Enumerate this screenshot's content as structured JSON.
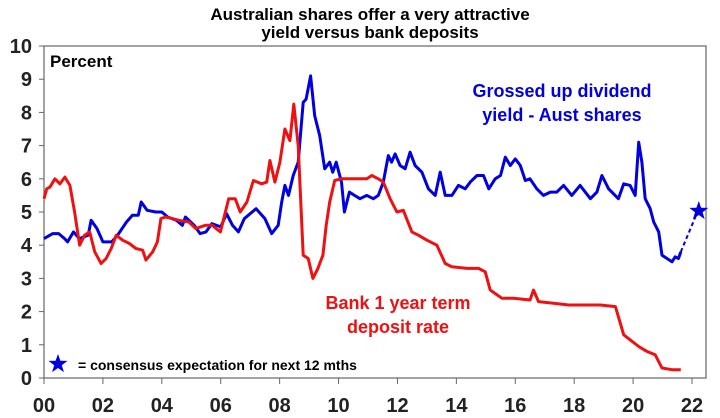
{
  "chart_data": {
    "type": "line",
    "title": "Australian shares offer a very attractive yield versus bank deposits",
    "title_lines": [
      "Australian shares offer a very attractive",
      "yield versus bank deposits"
    ],
    "ylabel": "Percent",
    "ylim": [
      0,
      10
    ],
    "xlim": [
      2000,
      2022.5
    ],
    "y_ticks": [
      "0",
      "1",
      "2",
      "3",
      "4",
      "5",
      "6",
      "7",
      "8",
      "9",
      "10"
    ],
    "x_ticks": [
      {
        "label": "00",
        "value": 2000
      },
      {
        "label": "02",
        "value": 2002
      },
      {
        "label": "04",
        "value": 2004
      },
      {
        "label": "06",
        "value": 2006
      },
      {
        "label": "08",
        "value": 2008
      },
      {
        "label": "10",
        "value": 2010
      },
      {
        "label": "12",
        "value": 2012
      },
      {
        "label": "14",
        "value": 2014
      },
      {
        "label": "16",
        "value": 2016
      },
      {
        "label": "18",
        "value": 2018
      },
      {
        "label": "20",
        "value": 2020
      },
      {
        "label": "22",
        "value": 2022
      }
    ],
    "grid": false,
    "series": [
      {
        "name": "Grossed up dividend yield - Aust shares",
        "label_lines": [
          "Grossed up dividend",
          "yield - Aust shares"
        ],
        "color": "#0000e0",
        "points": [
          [
            2000,
            4.2
          ],
          [
            2000.3,
            4.35
          ],
          [
            2000.5,
            4.35
          ],
          [
            2000.7,
            4.2
          ],
          [
            2000.8,
            4.1
          ],
          [
            2001,
            4.4
          ],
          [
            2001.2,
            4.2
          ],
          [
            2001.5,
            4.3
          ],
          [
            2001.6,
            4.75
          ],
          [
            2001.8,
            4.5
          ],
          [
            2002,
            4.1
          ],
          [
            2002.3,
            4.1
          ],
          [
            2002.5,
            4.3
          ],
          [
            2002.8,
            4.7
          ],
          [
            2003,
            4.9
          ],
          [
            2003.2,
            4.9
          ],
          [
            2003.3,
            5.3
          ],
          [
            2003.5,
            5.05
          ],
          [
            2003.8,
            5.0
          ],
          [
            2004,
            5.0
          ],
          [
            2004.2,
            4.85
          ],
          [
            2004.5,
            4.75
          ],
          [
            2004.7,
            4.6
          ],
          [
            2004.8,
            4.85
          ],
          [
            2005.1,
            4.6
          ],
          [
            2005.3,
            4.35
          ],
          [
            2005.5,
            4.4
          ],
          [
            2005.7,
            4.65
          ],
          [
            2006,
            4.55
          ],
          [
            2006.2,
            4.95
          ],
          [
            2006.4,
            4.6
          ],
          [
            2006.6,
            4.4
          ],
          [
            2006.8,
            4.8
          ],
          [
            2007.2,
            5.1
          ],
          [
            2007.5,
            4.8
          ],
          [
            2007.73,
            4.35
          ],
          [
            2007.95,
            4.6
          ],
          [
            2008.07,
            5.3
          ],
          [
            2008.18,
            5.8
          ],
          [
            2008.3,
            5.5
          ],
          [
            2008.46,
            6.1
          ],
          [
            2008.63,
            6.5
          ],
          [
            2008.8,
            8.3
          ],
          [
            2008.9,
            8.4
          ],
          [
            2009.05,
            9.1
          ],
          [
            2009.19,
            7.9
          ],
          [
            2009.36,
            7.3
          ],
          [
            2009.53,
            6.3
          ],
          [
            2009.7,
            6.5
          ],
          [
            2009.8,
            6.2
          ],
          [
            2009.92,
            6.5
          ],
          [
            2010.1,
            5.9
          ],
          [
            2010.2,
            5.0
          ],
          [
            2010.37,
            5.6
          ],
          [
            2010.54,
            5.5
          ],
          [
            2010.73,
            5.4
          ],
          [
            2010.96,
            5.5
          ],
          [
            2011.18,
            5.4
          ],
          [
            2011.35,
            5.5
          ],
          [
            2011.52,
            5.9
          ],
          [
            2011.69,
            6.7
          ],
          [
            2011.8,
            6.5
          ],
          [
            2011.92,
            6.75
          ],
          [
            2012.09,
            6.4
          ],
          [
            2012.26,
            6.3
          ],
          [
            2012.43,
            6.8
          ],
          [
            2012.6,
            6.4
          ],
          [
            2012.83,
            6.2
          ],
          [
            2013.05,
            5.7
          ],
          [
            2013.28,
            5.5
          ],
          [
            2013.45,
            6.2
          ],
          [
            2013.62,
            5.5
          ],
          [
            2013.85,
            5.5
          ],
          [
            2014.07,
            5.8
          ],
          [
            2014.3,
            5.7
          ],
          [
            2014.47,
            5.9
          ],
          [
            2014.7,
            6.1
          ],
          [
            2014.92,
            6.1
          ],
          [
            2015.1,
            5.7
          ],
          [
            2015.32,
            6.0
          ],
          [
            2015.5,
            6.1
          ],
          [
            2015.66,
            6.65
          ],
          [
            2015.83,
            6.4
          ],
          [
            2016.0,
            6.6
          ],
          [
            2016.17,
            6.4
          ],
          [
            2016.34,
            5.95
          ],
          [
            2016.5,
            6.0
          ],
          [
            2016.73,
            5.7
          ],
          [
            2016.96,
            5.5
          ],
          [
            2017.19,
            5.6
          ],
          [
            2017.41,
            5.6
          ],
          [
            2017.64,
            5.8
          ],
          [
            2017.92,
            5.5
          ],
          [
            2018.2,
            5.8
          ],
          [
            2018.55,
            5.4
          ],
          [
            2018.77,
            5.6
          ],
          [
            2018.94,
            6.1
          ],
          [
            2019.17,
            5.7
          ],
          [
            2019.5,
            5.4
          ],
          [
            2019.68,
            5.85
          ],
          [
            2019.9,
            5.8
          ],
          [
            2020.07,
            5.5
          ],
          [
            2020.19,
            7.1
          ],
          [
            2020.3,
            6.5
          ],
          [
            2020.41,
            5.4
          ],
          [
            2020.58,
            5.1
          ],
          [
            2020.7,
            4.7
          ],
          [
            2020.87,
            4.4
          ],
          [
            2020.98,
            3.7
          ],
          [
            2021.15,
            3.6
          ],
          [
            2021.32,
            3.5
          ],
          [
            2021.43,
            3.65
          ],
          [
            2021.54,
            3.6
          ],
          [
            2021.62,
            3.8
          ]
        ],
        "forecast": {
          "from": [
            2021.62,
            3.8
          ],
          "to": [
            2022.23,
            5.03
          ]
        }
      },
      {
        "name": "Bank 1 year term deposit rate",
        "label_lines": [
          "Bank 1 year term",
          "deposit rate"
        ],
        "color": "#ee1111",
        "points": [
          [
            2000,
            5.4
          ],
          [
            2000.09,
            5.7
          ],
          [
            2000.2,
            5.75
          ],
          [
            2000.37,
            6.0
          ],
          [
            2000.54,
            5.85
          ],
          [
            2000.71,
            6.05
          ],
          [
            2000.88,
            5.8
          ],
          [
            2001.04,
            5.0
          ],
          [
            2001.21,
            4.0
          ],
          [
            2001.38,
            4.3
          ],
          [
            2001.55,
            4.4
          ],
          [
            2001.72,
            3.8
          ],
          [
            2001.94,
            3.45
          ],
          [
            2002.11,
            3.6
          ],
          [
            2002.28,
            3.9
          ],
          [
            2002.45,
            4.3
          ],
          [
            2002.67,
            4.15
          ],
          [
            2002.9,
            4.05
          ],
          [
            2003.12,
            3.9
          ],
          [
            2003.35,
            3.85
          ],
          [
            2003.46,
            3.55
          ],
          [
            2003.69,
            3.8
          ],
          [
            2003.85,
            4.1
          ],
          [
            2003.97,
            4.8
          ],
          [
            2004.13,
            4.85
          ],
          [
            2004.36,
            4.8
          ],
          [
            2004.58,
            4.75
          ],
          [
            2004.92,
            4.7
          ],
          [
            2005.15,
            4.5
          ],
          [
            2005.48,
            4.6
          ],
          [
            2005.71,
            4.6
          ],
          [
            2005.99,
            4.4
          ],
          [
            2006.27,
            5.4
          ],
          [
            2006.49,
            5.4
          ],
          [
            2006.66,
            5.0
          ],
          [
            2006.89,
            5.3
          ],
          [
            2007.11,
            5.95
          ],
          [
            2007.39,
            5.85
          ],
          [
            2007.56,
            5.9
          ],
          [
            2007.67,
            6.55
          ],
          [
            2007.84,
            5.9
          ],
          [
            2008.01,
            6.5
          ],
          [
            2008.18,
            7.5
          ],
          [
            2008.35,
            7.15
          ],
          [
            2008.48,
            8.25
          ],
          [
            2008.63,
            7.0
          ],
          [
            2008.8,
            3.7
          ],
          [
            2008.97,
            3.6
          ],
          [
            2009.13,
            3.0
          ],
          [
            2009.3,
            3.3
          ],
          [
            2009.47,
            3.7
          ],
          [
            2009.58,
            4.6
          ],
          [
            2009.7,
            5.3
          ],
          [
            2009.87,
            5.95
          ],
          [
            2010.09,
            6.0
          ],
          [
            2010.96,
            6.0
          ],
          [
            2011.13,
            6.1
          ],
          [
            2011.35,
            6.0
          ],
          [
            2011.52,
            5.9
          ],
          [
            2011.75,
            5.4
          ],
          [
            2011.98,
            5.0
          ],
          [
            2012.2,
            5.05
          ],
          [
            2012.49,
            4.4
          ],
          [
            2012.71,
            4.3
          ],
          [
            2013.0,
            4.15
          ],
          [
            2013.34,
            4.0
          ],
          [
            2013.62,
            3.45
          ],
          [
            2013.85,
            3.35
          ],
          [
            2014.36,
            3.3
          ],
          [
            2014.75,
            3.3
          ],
          [
            2014.98,
            3.2
          ],
          [
            2015.15,
            2.65
          ],
          [
            2015.55,
            2.4
          ],
          [
            2015.94,
            2.4
          ],
          [
            2016.5,
            2.35
          ],
          [
            2016.62,
            2.65
          ],
          [
            2016.79,
            2.3
          ],
          [
            2017.3,
            2.25
          ],
          [
            2017.81,
            2.2
          ],
          [
            2018.89,
            2.2
          ],
          [
            2019.4,
            2.15
          ],
          [
            2019.68,
            1.3
          ],
          [
            2019.9,
            1.15
          ],
          [
            2020.19,
            0.95
          ],
          [
            2020.47,
            0.8
          ],
          [
            2020.75,
            0.7
          ],
          [
            2020.98,
            0.3
          ],
          [
            2021.32,
            0.25
          ],
          [
            2021.62,
            0.25
          ]
        ]
      }
    ],
    "annotations": {
      "star_note": "= consensus expectation for next 12 mths",
      "star_icon": "star-icon",
      "star_color": "#0000e0"
    }
  }
}
